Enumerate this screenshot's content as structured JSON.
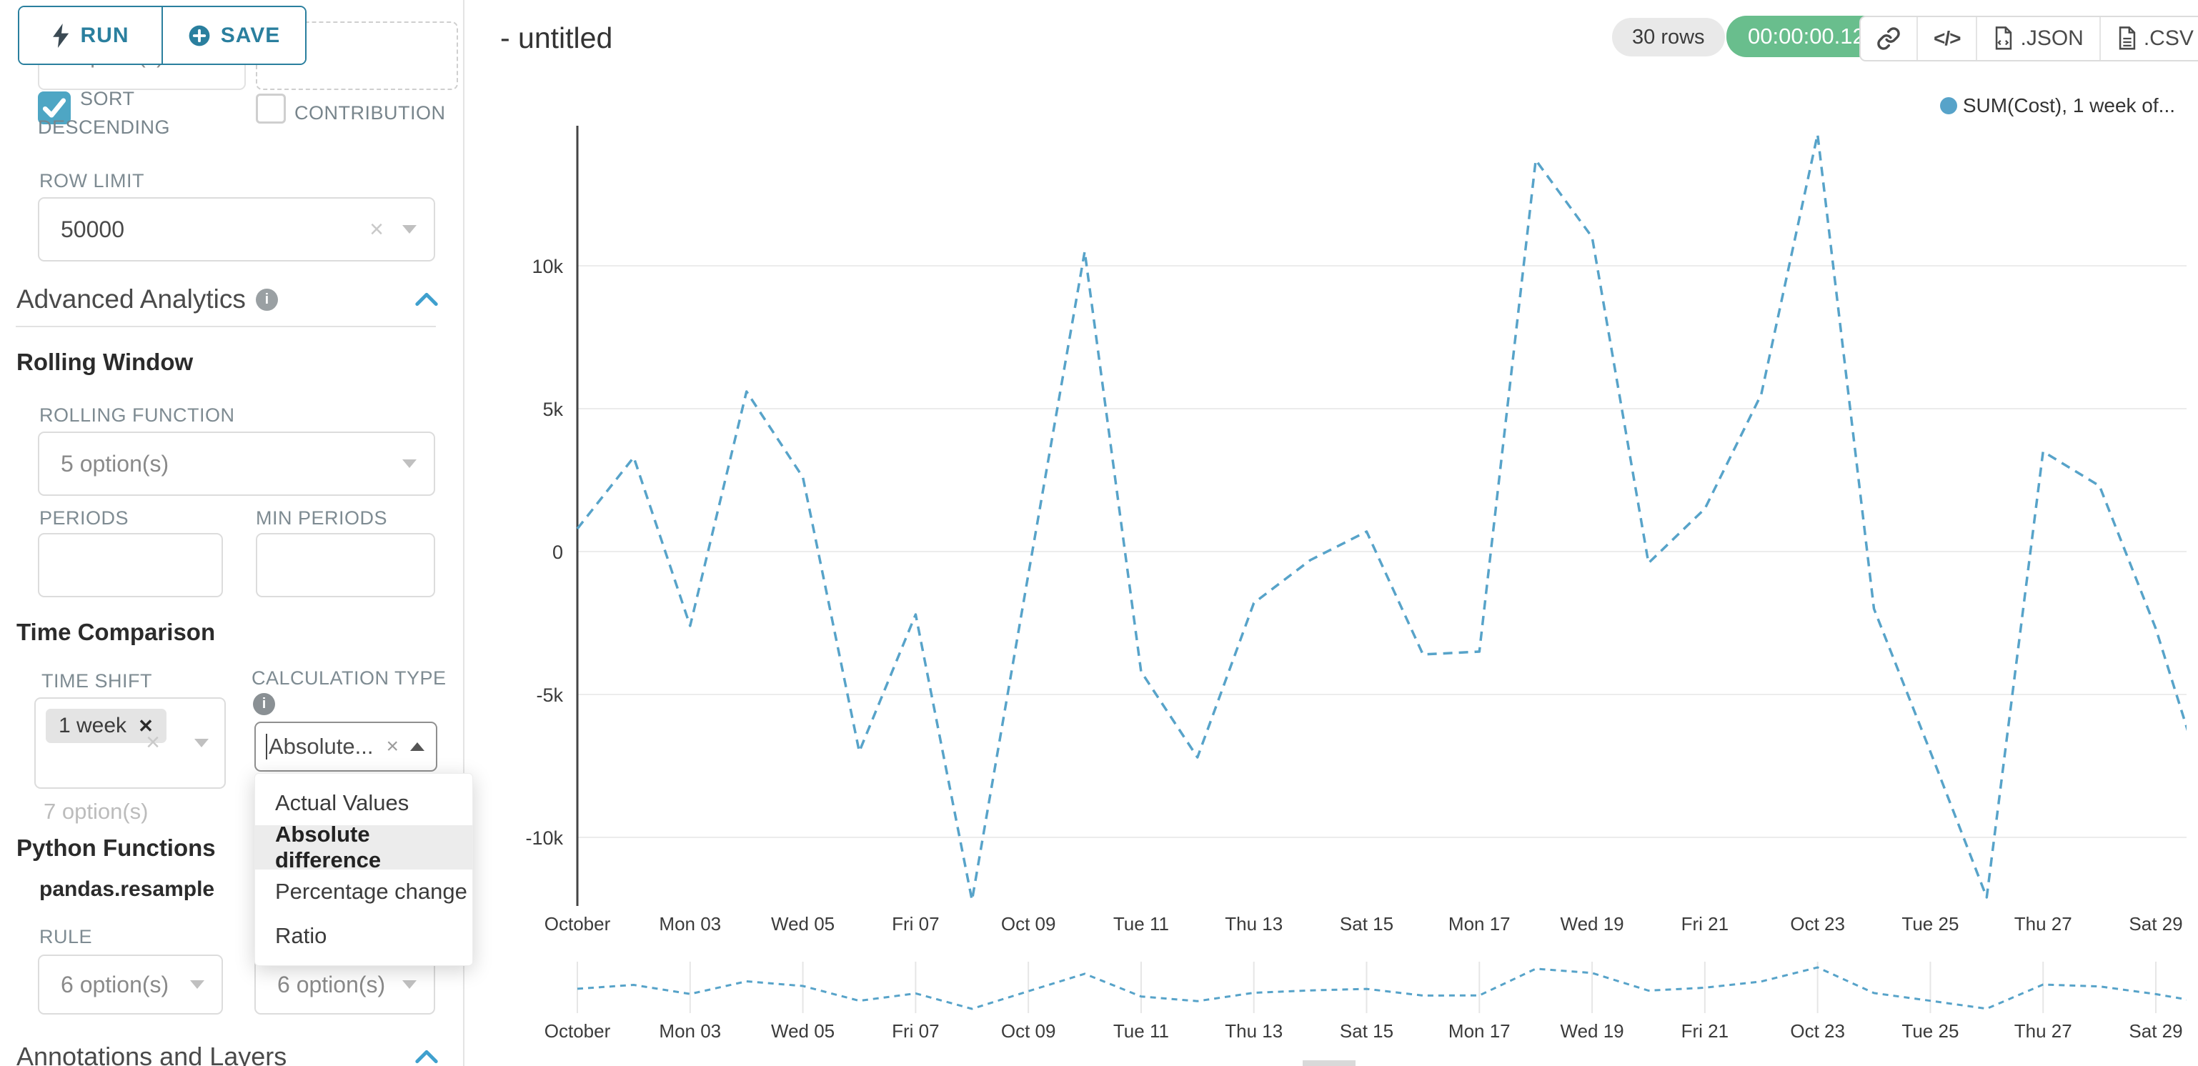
{
  "header": {
    "title": "- untitled",
    "rows_badge": "30 rows",
    "timer_badge": "00:00:00.12",
    "json_label": ".JSON",
    "csv_label": ".CSV"
  },
  "panel": {
    "run_label": "RUN",
    "save_label": "SAVE",
    "hidden_input_value": "7 option(s)",
    "sort_descending_line1": "SORT",
    "sort_descending_line2": "DESCENDING",
    "contribution_label": "CONTRIBUTION",
    "row_limit_label": "ROW LIMIT",
    "row_limit_value": "50000",
    "advanced_analytics_title": "Advanced Analytics",
    "rolling_window_title": "Rolling Window",
    "rolling_function_label": "ROLLING FUNCTION",
    "rolling_function_value": "5 option(s)",
    "periods_label": "PERIODS",
    "min_periods_label": "MIN PERIODS",
    "time_comparison_title": "Time Comparison",
    "time_shift_label": "TIME SHIFT",
    "time_shift_tag": "1 week",
    "time_shift_hint": "7 option(s)",
    "calculation_type_label": "CALCULATION TYPE",
    "calculation_type_value": "Absolute...",
    "dropdown_options": [
      "Actual Values",
      "Absolute difference",
      "Percentage change",
      "Ratio"
    ],
    "dropdown_selected": "Absolute difference",
    "python_functions_title": "Python Functions",
    "pandas_resample_label": "pandas.resample",
    "rule_label": "RULE",
    "rule_value_1": "6 option(s)",
    "rule_value_2": "6 option(s)",
    "annotations_title": "Annotations and Layers"
  },
  "colors": {
    "accent_teal": "#2a7f9e",
    "checkbox_teal": "#4ea6c4",
    "chevron_blue": "#3fa0ce",
    "line_blue": "#57a3c9",
    "badge_green": "#69be8d",
    "badge_gray": "#e9e9e9",
    "gridline": "#ececec",
    "axis": "#444444"
  },
  "chart_data": {
    "type": "line",
    "title": "",
    "xlabel": "",
    "ylabel": "",
    "grid": true,
    "legend_position": "top-right",
    "line_style": "dashed",
    "ylim": [
      -12500,
      14900
    ],
    "y_tick_labels": [
      "10k",
      "5k",
      "0",
      "-5k",
      "-10k"
    ],
    "y_tick_values": [
      10000,
      5000,
      0,
      -5000,
      -10000
    ],
    "x_tick_labels": [
      "October",
      "Mon 03",
      "Wed 05",
      "Fri 07",
      "Oct 09",
      "Tue 11",
      "Thu 13",
      "Sat 15",
      "Mon 17",
      "Wed 19",
      "Fri 21",
      "Oct 23",
      "Tue 25",
      "Thu 27",
      "Sat 29"
    ],
    "x_tick_day_indices": [
      0,
      2,
      4,
      6,
      8,
      10,
      12,
      14,
      16,
      18,
      20,
      22,
      24,
      26,
      28
    ],
    "series": [
      {
        "name": "SUM(Cost), 1 week of...",
        "color": "#57a3c9",
        "values": [
          800,
          3300,
          -2600,
          5600,
          2600,
          -7000,
          -2200,
          -12200,
          -800,
          10500,
          -4200,
          -7200,
          -1800,
          -300,
          700,
          -3600,
          -3500,
          13700,
          11000,
          -400,
          1500,
          5500,
          14600,
          -2000,
          -7000,
          -12100,
          3500,
          2300,
          -2700,
          -9000
        ]
      }
    ],
    "mini_preview": true
  }
}
